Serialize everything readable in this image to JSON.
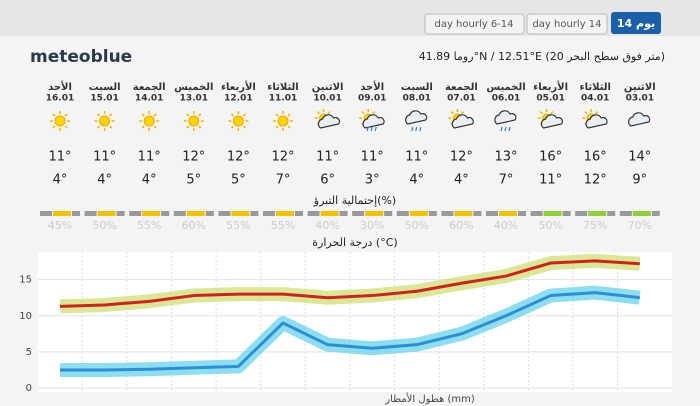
{
  "tabs": [
    "day hourly 6-14",
    "day hourly 14",
    "14 يوم"
  ],
  "logo": "meteoblue",
  "location": "روما 41.89°N / 12.51°E (20 متر فوق سطح البحر)",
  "days": {
    "names": [
      "الاثنين",
      "الثلاثاء",
      "الأربعاء",
      "الخميس",
      "الجمعة",
      "السبت",
      "الأحد",
      "الاثنين",
      "الثلاثاء",
      "الأربعاء",
      "الخميس",
      "الجمعة",
      "السبت",
      "الأحد"
    ],
    "dates": [
      "03.01",
      "04.01",
      "05.01",
      "06.01",
      "07.01",
      "08.01",
      "09.01",
      "10.01",
      "11.01",
      "12.01",
      "13.01",
      "14.01",
      "15.01",
      "16.01"
    ],
    "max": [
      "14°",
      "16°",
      "16°",
      "13°",
      "12°",
      "11°",
      "11°",
      "11°",
      "12°",
      "12°",
      "12°",
      "11°",
      "11°",
      "11°"
    ],
    "min": [
      "9°",
      "12°",
      "11°",
      "7°",
      "4°",
      "4°",
      "3°",
      "6°",
      "7°",
      "5°",
      "5°",
      "4°",
      "4°",
      "4°"
    ],
    "precip_probability": [
      "70%",
      "75%",
      "50%",
      "40%",
      "60%",
      "50%",
      "30%",
      "40%",
      "55%",
      "55%",
      "60%",
      "55%",
      "50%",
      "45%"
    ]
  },
  "precip_label": "إحتمالية التبرؤ(%)",
  "temp_label": "درجة الحرارة (°C)",
  "rain_label": "هطول الأمطار (mm)",
  "chart": {
    "type": "line",
    "ylim": [
      0,
      18
    ],
    "yticks": [
      0,
      5,
      10,
      15
    ],
    "series": [
      {
        "color": "#d0211c",
        "band": "#c9dd6a",
        "values": [
          17.2,
          17.6,
          17.3,
          15.5,
          14.5,
          13.4,
          12.8,
          12.5,
          13,
          13,
          12.8,
          12,
          11.5,
          11.3
        ]
      },
      {
        "color": "#2a8fd6",
        "band": "#5fd0ea",
        "values": [
          12.5,
          13.2,
          12.8,
          10,
          7.5,
          6,
          5.5,
          6,
          9,
          3,
          2.8,
          2.6,
          2.5,
          2.5
        ]
      }
    ]
  }
}
